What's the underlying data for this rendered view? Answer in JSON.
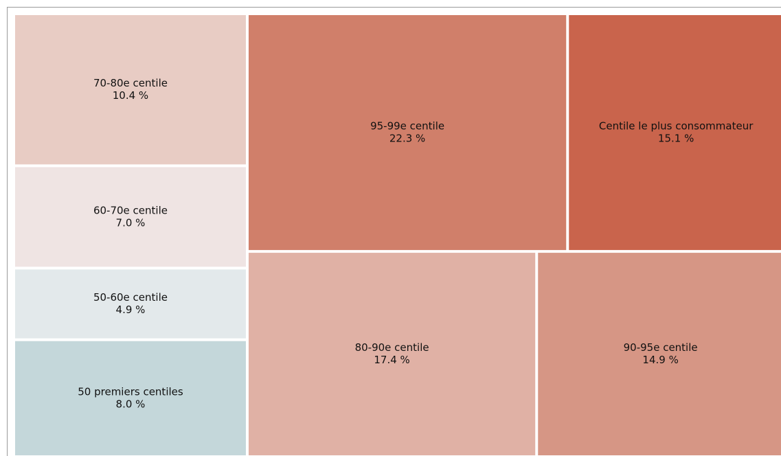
{
  "chart_data": {
    "type": "treemap",
    "categories": [
      "70-80e centile",
      "60-70e centile",
      "50-60e centile",
      "50 premiers centiles",
      "95-99e centile",
      "Centile le plus consommateur",
      "80-90e centile",
      "90-95e centile"
    ],
    "values": [
      10.4,
      7.0,
      4.9,
      8.0,
      22.3,
      15.1,
      17.4,
      14.9
    ],
    "value_labels": [
      "10.4 %",
      "7.0 %",
      "4.9 %",
      "8.0 %",
      "22.3 %",
      "15.1 %",
      "17.4 %",
      "14.9 %"
    ],
    "colors": [
      "#e8ccc4",
      "#efe4e3",
      "#e3e9eb",
      "#c4d7da",
      "#d07f6a",
      "#c9644c",
      "#e0b1a5",
      "#d69685"
    ]
  }
}
